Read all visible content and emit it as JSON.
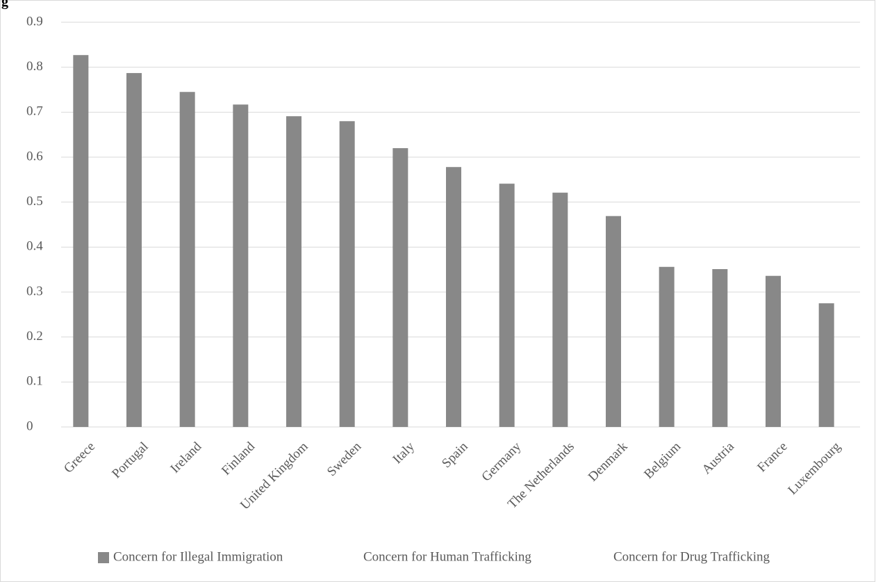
{
  "chart_data": {
    "type": "bar",
    "title": "g",
    "categories": [
      "Greece",
      "Portugal",
      "Ireland",
      "Finland",
      "United Kingdom",
      "Sweden",
      "Italy",
      "Spain",
      "Germany",
      "The Netherlands",
      "Denmark",
      "Belgium",
      "Austria",
      "France",
      "Luxembourg"
    ],
    "series": [
      {
        "name": "Concern for Illegal Immigration",
        "color": "#888888",
        "values": [
          0.827,
          0.787,
          0.745,
          0.717,
          0.691,
          0.68,
          0.62,
          0.578,
          0.541,
          0.521,
          0.469,
          0.356,
          0.351,
          0.336,
          0.275
        ]
      },
      {
        "name": "Concern for Human Trafficking",
        "color": "#ffffff",
        "values": [
          null,
          null,
          null,
          null,
          null,
          null,
          null,
          null,
          null,
          null,
          null,
          null,
          null,
          null,
          null
        ]
      },
      {
        "name": "Concern for Drug Trafficking",
        "color": "#ffffff",
        "values": [
          null,
          null,
          null,
          null,
          null,
          null,
          null,
          null,
          null,
          null,
          null,
          null,
          null,
          null,
          null
        ]
      }
    ],
    "ylim": [
      0,
      0.9
    ],
    "yticks": [
      0,
      0.1,
      0.2,
      0.3,
      0.4,
      0.5,
      0.6,
      0.7,
      0.8,
      0.9
    ],
    "grid": true,
    "legend": "bottom"
  }
}
